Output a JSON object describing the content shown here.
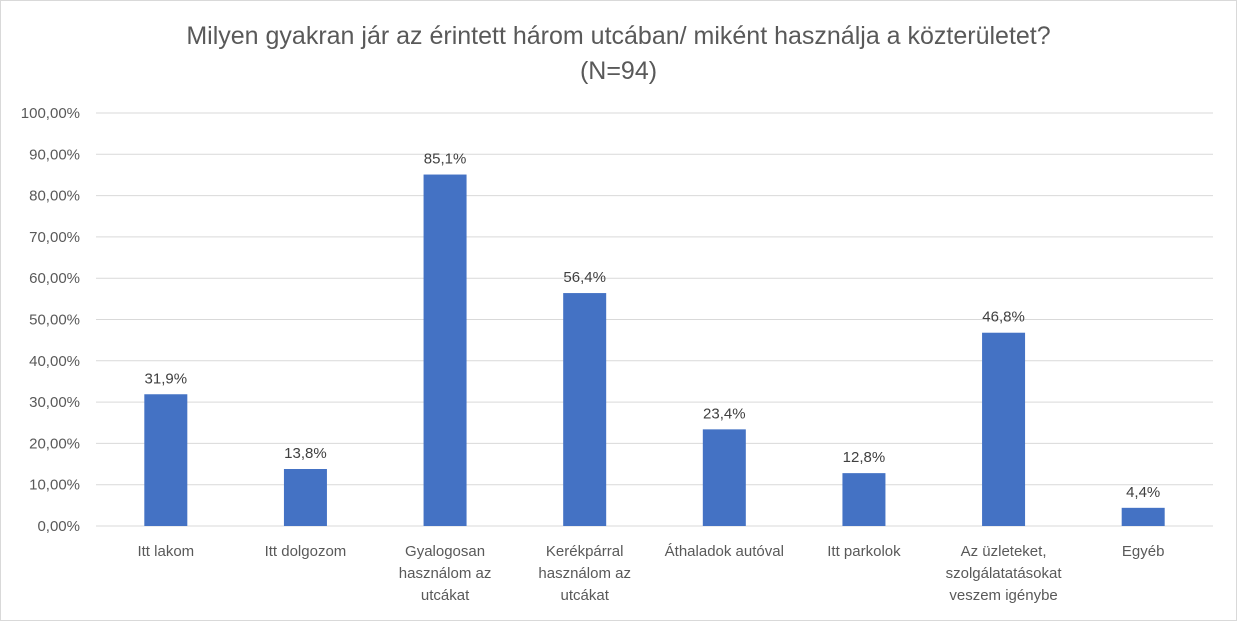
{
  "chart_data": {
    "type": "bar",
    "title_lines": [
      "Milyen gyakran jár az érintett három utcában/ miként használja a közterületet?",
      "(N=94)"
    ],
    "categories": [
      [
        "Itt lakom"
      ],
      [
        "Itt dolgozom"
      ],
      [
        "Gyalogosan",
        "használom az",
        "utcákat"
      ],
      [
        "Kerékpárral",
        "használom az",
        "utcákat"
      ],
      [
        "Áthaladok autóval"
      ],
      [
        "Itt parkolok"
      ],
      [
        "Az üzleteket,",
        "szolgálatatásokat",
        "veszem igénybe"
      ],
      [
        "Egyéb"
      ]
    ],
    "values": [
      31.9,
      13.8,
      85.1,
      56.4,
      23.4,
      12.8,
      46.8,
      4.4
    ],
    "data_labels": [
      "31,9%",
      "13,8%",
      "85,1%",
      "56,4%",
      "23,4%",
      "12,8%",
      "46,8%",
      "4,4%"
    ],
    "ylim": [
      0,
      100
    ],
    "yticks": [
      "0,00%",
      "10,00%",
      "20,00%",
      "30,00%",
      "40,00%",
      "50,00%",
      "60,00%",
      "70,00%",
      "80,00%",
      "90,00%",
      "100,00%"
    ],
    "grid": true,
    "legend": "none",
    "bar_color": "#4472c4",
    "grid_color": "#d9d9d9"
  }
}
